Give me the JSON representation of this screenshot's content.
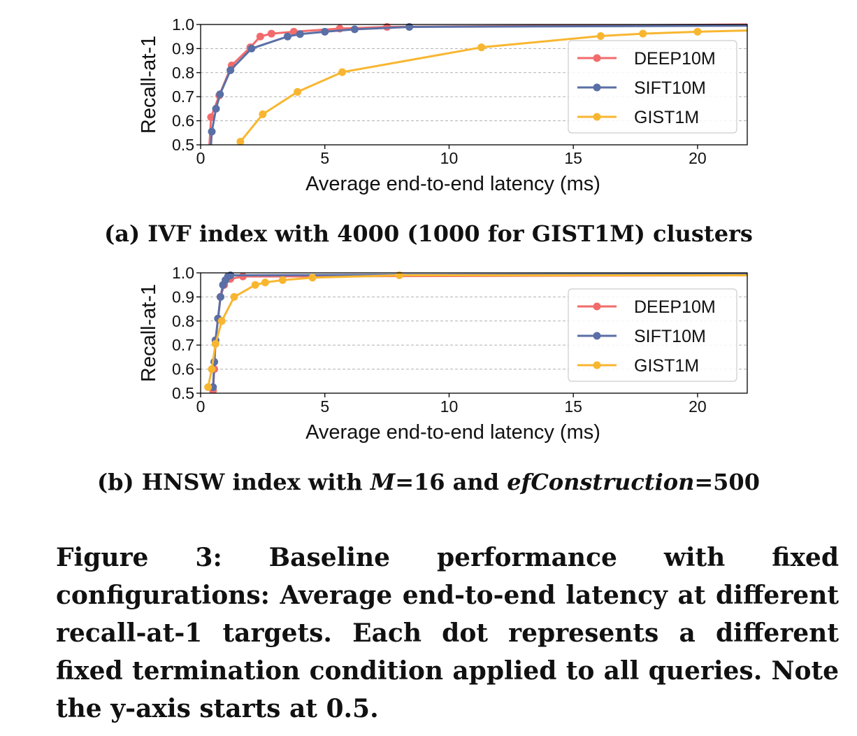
{
  "chart_data": [
    {
      "type": "line",
      "caption": "(a) IVF index with 4000 (1000 for GIST1M) clusters",
      "xlabel": "Average end-to-end latency (ms)",
      "ylabel": "Recall-at-1",
      "xlim": [
        0,
        22
      ],
      "ylim": [
        0.5,
        1.0
      ],
      "xticks": [
        "0",
        "5",
        "10",
        "15",
        "20"
      ],
      "yticks": [
        "0.5",
        "0.6",
        "0.7",
        "0.8",
        "0.9",
        "1.0"
      ],
      "grid": "horizontal-dashed",
      "legend_position": "right",
      "series": [
        {
          "name": "DEEP10M",
          "color": "#f26b6b",
          "x": [
            0.3,
            0.42,
            0.75,
            1.25,
            2.0,
            2.4,
            2.85,
            3.75,
            5.6,
            7.5,
            22
          ],
          "y": [
            0.4,
            0.615,
            0.705,
            0.83,
            0.905,
            0.95,
            0.962,
            0.97,
            0.983,
            0.99,
            1.0
          ]
        },
        {
          "name": "SIFT10M",
          "color": "#5a6fa5",
          "x": [
            0.3,
            0.45,
            0.62,
            0.78,
            1.2,
            2.05,
            3.5,
            4.0,
            5.0,
            6.2,
            8.4,
            22
          ],
          "y": [
            0.3,
            0.555,
            0.65,
            0.71,
            0.81,
            0.9,
            0.95,
            0.96,
            0.97,
            0.98,
            0.99,
            0.995
          ]
        },
        {
          "name": "GIST1M",
          "color": "#f8b630",
          "x": [
            1.6,
            2.5,
            3.9,
            5.7,
            11.3,
            16.1,
            17.8,
            20.0,
            22
          ],
          "y": [
            0.513,
            0.627,
            0.72,
            0.802,
            0.905,
            0.952,
            0.962,
            0.97,
            0.975
          ]
        }
      ]
    },
    {
      "type": "line",
      "caption": "(b) HNSW index with M=16 and efConstruction=500",
      "xlabel": "Average end-to-end latency (ms)",
      "ylabel": "Recall-at-1",
      "xlim": [
        0,
        22
      ],
      "ylim": [
        0.5,
        1.0
      ],
      "xticks": [
        "0",
        "5",
        "10",
        "15",
        "20"
      ],
      "yticks": [
        "0.5",
        "0.6",
        "0.7",
        "0.8",
        "0.9",
        "1.0"
      ],
      "grid": "horizontal-dashed",
      "legend_position": "right",
      "series": [
        {
          "name": "DEEP10M",
          "color": "#f26b6b",
          "x": [
            0.5,
            0.55,
            0.6,
            0.7,
            0.8,
            0.95,
            1.2,
            1.7,
            22
          ],
          "y": [
            0.51,
            0.6,
            0.72,
            0.81,
            0.9,
            0.95,
            0.975,
            0.985,
            0.99
          ]
        },
        {
          "name": "SIFT10M",
          "color": "#5a6fa5",
          "x": [
            0.5,
            0.55,
            0.6,
            0.7,
            0.8,
            0.9,
            1.0,
            1.1,
            1.2,
            22
          ],
          "y": [
            0.525,
            0.63,
            0.72,
            0.81,
            0.9,
            0.95,
            0.97,
            0.985,
            0.99,
            0.995
          ]
        },
        {
          "name": "GIST1M",
          "color": "#f8b630",
          "x": [
            0.3,
            0.45,
            0.6,
            0.85,
            1.35,
            2.2,
            2.6,
            3.3,
            4.5,
            8.0,
            22
          ],
          "y": [
            0.525,
            0.6,
            0.705,
            0.8,
            0.9,
            0.95,
            0.96,
            0.97,
            0.98,
            0.99,
            0.99
          ]
        }
      ]
    }
  ],
  "subcaptions": {
    "a": "(a) IVF index with 4000 (1000 for GIST1M) clusters",
    "b_prefix": "(b) HNSW index with ",
    "b_m": "M",
    "b_mid": "=16 and ",
    "b_ef": "efConstruction",
    "b_suffix": "=500"
  },
  "figure_caption": "Figure 3: Baseline performance with fixed configurations: Average end-to-end latency at different recall-at-1 targets. Each dot represents a different fixed termination condition applied to all queries. Note the y-axis starts at 0.5."
}
